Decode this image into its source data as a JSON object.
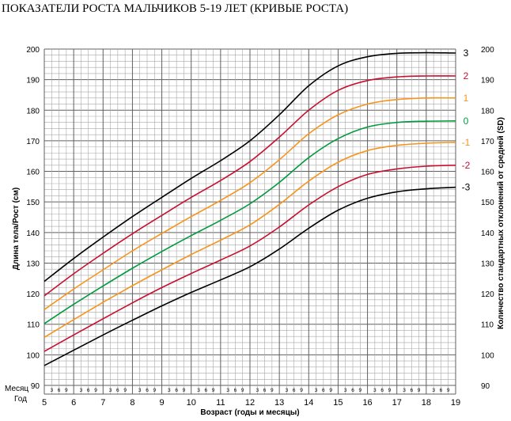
{
  "title": "ПОКАЗАТЕЛИ РОСТА МАЛЬЧИКОВ 5-19 ЛЕТ (КРИВЫЕ РОСТА)",
  "corner_labels": {
    "month": "Месяц",
    "year": "Год"
  },
  "chart_data": {
    "type": "line",
    "title": "ПОКАЗАТЕЛИ РОСТА МАЛЬЧИКОВ 5-19 ЛЕТ (КРИВЫЕ РОСТА)",
    "xlabel": "Возраст (годы и месяцы)",
    "ylabel": "Длина тела/Рост (см)",
    "y2label": "Количество стандартных отклонений от средней (SD)",
    "xlim": [
      5,
      19
    ],
    "ylim": [
      90,
      200
    ],
    "x_ticks": [
      5,
      6,
      7,
      8,
      9,
      10,
      11,
      12,
      13,
      14,
      15,
      16,
      17,
      18,
      19
    ],
    "y_ticks": [
      90,
      100,
      110,
      120,
      130,
      140,
      150,
      160,
      170,
      180,
      190,
      200
    ],
    "month_ticks": [
      "3",
      "6",
      "9"
    ],
    "grid": true,
    "x": [
      5,
      6,
      7,
      8,
      9,
      10,
      11,
      12,
      13,
      14,
      15,
      16,
      17,
      18,
      19
    ],
    "series": [
      {
        "name": "3",
        "color": "#000000",
        "values": [
          124,
          131.5,
          138.5,
          145.2,
          151.5,
          157.7,
          163.5,
          170,
          178.5,
          188,
          194.5,
          197.5,
          198.6,
          198.8,
          198.7
        ]
      },
      {
        "name": "2",
        "color": "#c8102e",
        "values": [
          119.3,
          126.5,
          133.2,
          139.6,
          145.6,
          151.5,
          157,
          163.2,
          171.2,
          180,
          186.5,
          189.7,
          190.9,
          191.2,
          191.2
        ]
      },
      {
        "name": "1",
        "color": "#f7941d",
        "values": [
          114.8,
          121.5,
          127.8,
          134,
          139.7,
          145.2,
          150.5,
          156.3,
          163.8,
          172.3,
          178.5,
          182,
          183.5,
          184,
          184
        ]
      },
      {
        "name": "0",
        "color": "#009a3d",
        "values": [
          110.2,
          116.5,
          122.5,
          128.3,
          133.8,
          139,
          144,
          149.4,
          156.4,
          164.5,
          170.7,
          174.5,
          176,
          176.4,
          176.5
        ]
      },
      {
        "name": "-1",
        "color": "#f7941d",
        "values": [
          105.7,
          111.5,
          117.2,
          122.6,
          127.8,
          132.8,
          137.5,
          142.5,
          149.2,
          156.8,
          163,
          166.8,
          168.5,
          169.2,
          169.5
        ]
      },
      {
        "name": "-2",
        "color": "#c8102e",
        "values": [
          101.1,
          106.5,
          111.8,
          117,
          122,
          126.6,
          131,
          135.6,
          141.8,
          149,
          155,
          159,
          160.8,
          161.7,
          162
        ]
      },
      {
        "name": "-3",
        "color": "#000000",
        "values": [
          96.5,
          101.5,
          106.5,
          111.3,
          116,
          120.4,
          124.5,
          128.8,
          134.6,
          141.4,
          147.3,
          151.2,
          153.3,
          154.3,
          154.8
        ]
      }
    ]
  }
}
